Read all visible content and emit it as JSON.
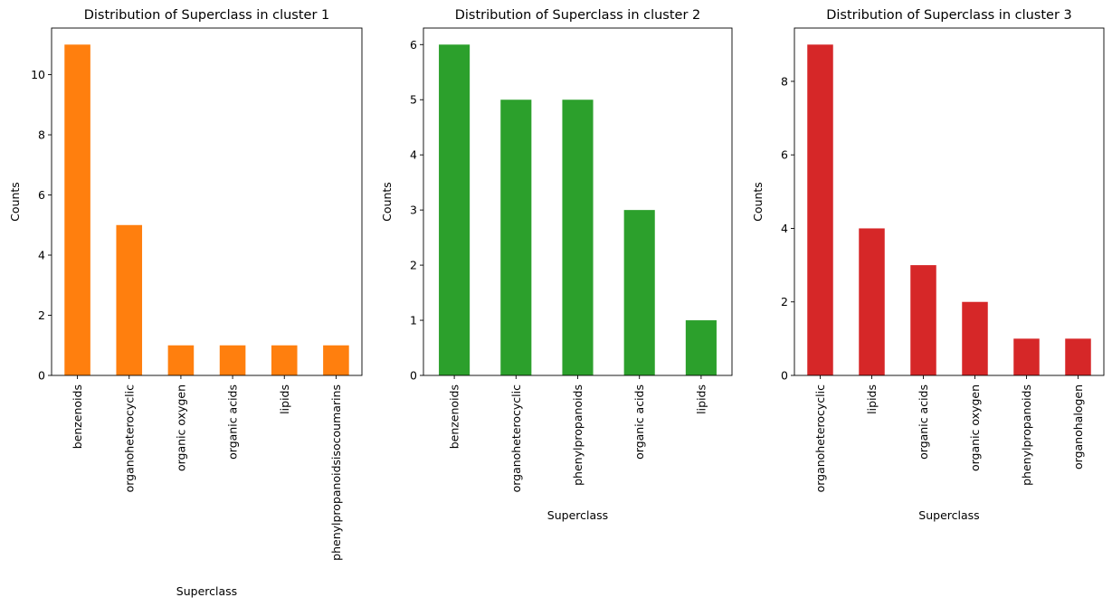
{
  "chart_data": [
    {
      "type": "bar",
      "title": "Distribution of Superclass in cluster 1",
      "xlabel": "Superclass",
      "ylabel": "Counts",
      "categories": [
        "benzenoids",
        "organoheterocyclic",
        "organic oxygen",
        "organic acids",
        "lipids",
        "phenylpropanoidsisocoumarins"
      ],
      "values": [
        11,
        5,
        1,
        1,
        1,
        1
      ],
      "yticks": [
        0,
        2,
        4,
        6,
        8,
        10
      ],
      "ylim": [
        0,
        11.55
      ],
      "color": "#ff7f0e",
      "grid": false
    },
    {
      "type": "bar",
      "title": "Distribution of Superclass in cluster 2",
      "xlabel": "Superclass",
      "ylabel": "Counts",
      "categories": [
        "benzenoids",
        "organoheterocyclic",
        "phenylpropanoids",
        "organic acids",
        "lipids"
      ],
      "values": [
        6,
        5,
        5,
        3,
        1
      ],
      "yticks": [
        0,
        1,
        2,
        3,
        4,
        5,
        6
      ],
      "ylim": [
        0,
        6.3
      ],
      "color": "#2ca02c",
      "grid": false
    },
    {
      "type": "bar",
      "title": "Distribution of Superclass in cluster 3",
      "xlabel": "Superclass",
      "ylabel": "Counts",
      "categories": [
        "organoheterocyclic",
        "lipids",
        "organic acids",
        "organic oxygen",
        "phenylpropanoids",
        "organohalogen"
      ],
      "values": [
        9,
        4,
        3,
        2,
        1,
        1
      ],
      "yticks": [
        0,
        2,
        4,
        6,
        8
      ],
      "ylim": [
        0,
        9.45
      ],
      "color": "#d62728",
      "grid": false
    }
  ]
}
